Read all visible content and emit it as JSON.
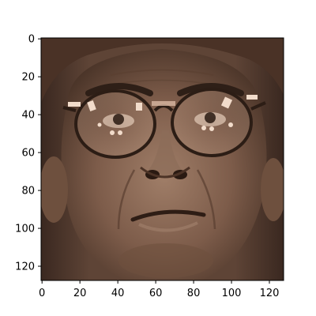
{
  "chart_data": {
    "type": "image",
    "x_ticks": [
      "0",
      "20",
      "40",
      "60",
      "80",
      "100",
      "120"
    ],
    "y_ticks": [
      "0",
      "20",
      "40",
      "60",
      "80",
      "100",
      "120"
    ],
    "x_tick_values": [
      0,
      20,
      40,
      60,
      80,
      100,
      120
    ],
    "y_tick_values": [
      0,
      20,
      40,
      60,
      80,
      100,
      120
    ],
    "xlim": [
      -0.5,
      127.5
    ],
    "ylim": [
      127.5,
      -0.5
    ],
    "image_width": 128,
    "image_height": 128,
    "grid": false,
    "colors": {
      "image_tone": "#7a5a48",
      "highlight_tone": "#d9b8a2",
      "shadow_tone": "#2a1a12",
      "axis_color": "#000000"
    }
  }
}
